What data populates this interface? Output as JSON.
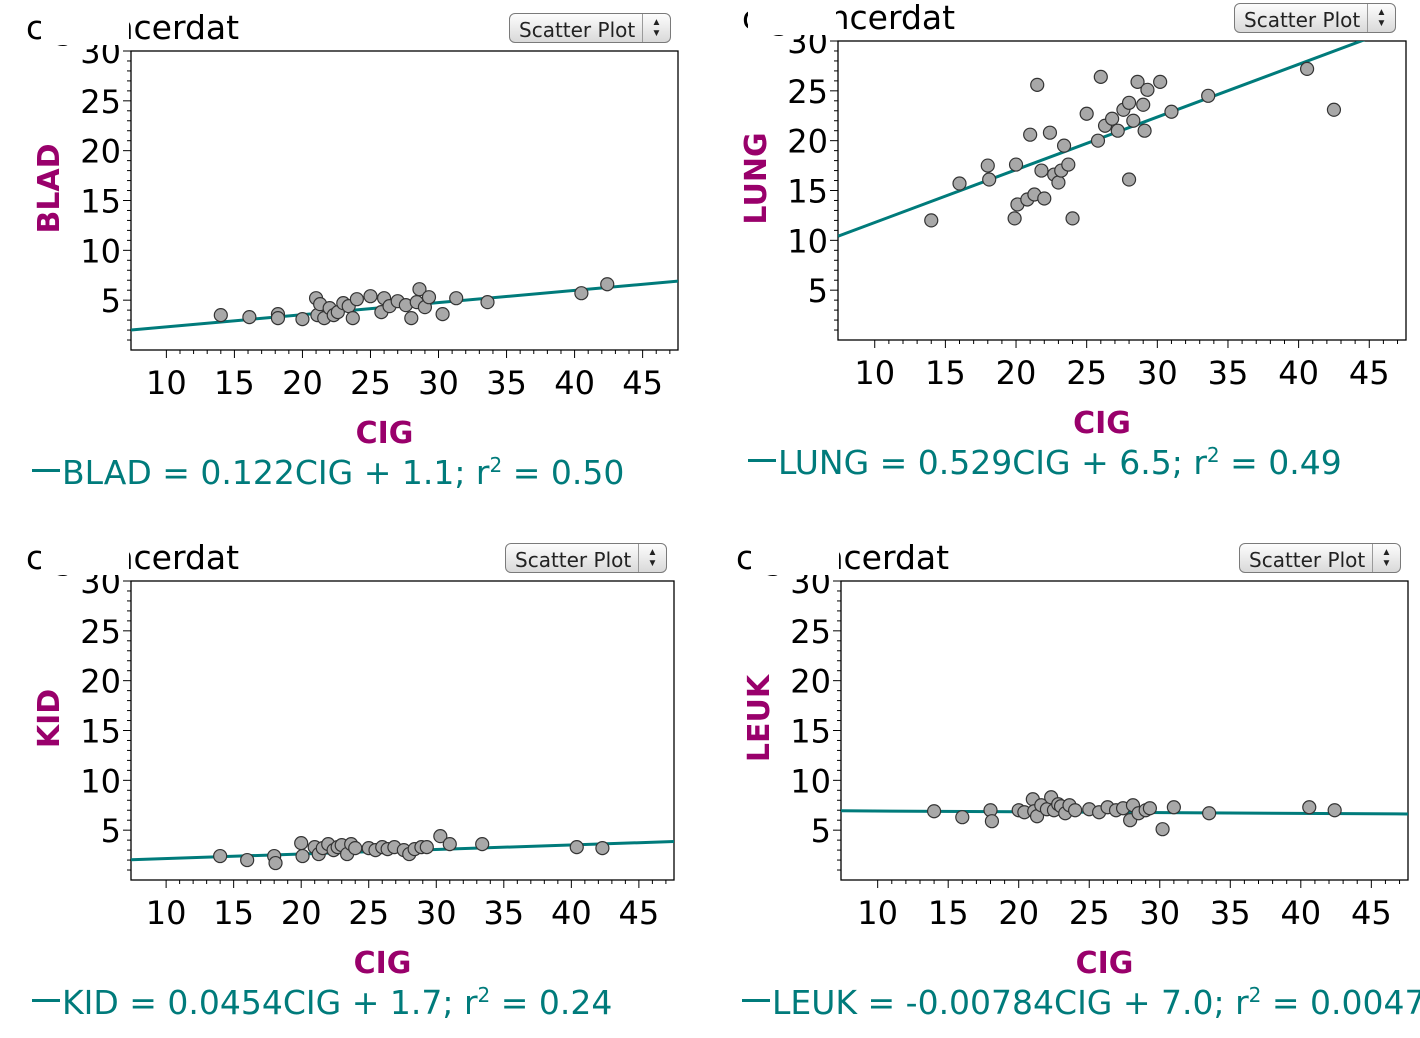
{
  "panels": [
    {
      "title": "cigcancerdat",
      "menu_label": "Scatter Plot",
      "equation": {
        "lhs": "BLAD = 0.122CIG + 1.1; r",
        "exp": "2",
        "rhs": " = 0.50"
      }
    },
    {
      "title": "cigcancerdat",
      "menu_label": "Scatter Plot",
      "equation": {
        "lhs": "LUNG = 0.529CIG + 6.5; r",
        "exp": "2",
        "rhs": " = 0.49"
      }
    },
    {
      "title": "cigcancerdat",
      "menu_label": "Scatter Plot",
      "equation": {
        "lhs": "KID = 0.0454CIG + 1.7; r",
        "exp": "2",
        "rhs": " = 0.24"
      }
    },
    {
      "title": "cigcancerdat",
      "menu_label": "Scatter Plot",
      "equation": {
        "lhs": "LEUK = -0.00784CIG + 7.0; r",
        "exp": "2",
        "rhs": " = 0.0047"
      }
    }
  ],
  "colors": {
    "line": "#007b7b",
    "label": "#99006b",
    "point_fill": "#a8a8a8",
    "point_stroke": "#333333"
  },
  "chart_data": [
    {
      "type": "scatter",
      "title": "cigcancerdat",
      "xlabel": "CIG",
      "ylabel": "BLAD",
      "xlim": [
        7.4,
        47.6
      ],
      "ylim": [
        0,
        30
      ],
      "x_ticks": [
        10,
        15,
        20,
        25,
        30,
        35,
        40,
        45
      ],
      "y_ticks": [
        5,
        10,
        15,
        20,
        25,
        30
      ],
      "y_tick_labels": [
        "5",
        "10",
        "15",
        "20",
        "25",
        "30"
      ],
      "regression": {
        "slope": 0.122,
        "intercept": 1.1
      },
      "x": [
        14.0,
        16.1,
        18.2,
        18.2,
        20.0,
        21.0,
        21.1,
        21.3,
        21.6,
        22.0,
        22.3,
        22.6,
        23.0,
        23.4,
        23.7,
        24.0,
        25.0,
        25.8,
        26.0,
        26.4,
        27.0,
        27.6,
        28.0,
        28.4,
        28.6,
        29.0,
        29.3,
        30.3,
        31.3,
        33.6,
        40.5,
        42.4
      ],
      "y": [
        3.5,
        3.3,
        3.6,
        3.2,
        3.1,
        5.2,
        3.5,
        4.6,
        3.2,
        4.2,
        3.5,
        3.8,
        4.7,
        4.4,
        3.2,
        5.1,
        5.4,
        3.8,
        5.2,
        4.4,
        4.9,
        4.5,
        3.2,
        4.8,
        6.1,
        4.3,
        5.3,
        3.6,
        5.2,
        4.8,
        5.7,
        6.6
      ]
    },
    {
      "type": "scatter",
      "title": "cigcancerdat",
      "xlabel": "CIG",
      "ylabel": "LUNG",
      "xlim": [
        7.4,
        47.6
      ],
      "ylim": [
        0,
        30
      ],
      "x_ticks": [
        10,
        15,
        20,
        25,
        30,
        35,
        40,
        45
      ],
      "y_ticks": [
        5,
        10,
        15,
        20,
        25,
        30
      ],
      "y_tick_labels": [
        "5",
        "10",
        "15",
        "20",
        "25",
        "30"
      ],
      "regression": {
        "slope": 0.529,
        "intercept": 6.5
      },
      "x": [
        14.0,
        16.0,
        18.0,
        18.1,
        20.0,
        19.9,
        20.1,
        20.8,
        21.0,
        21.3,
        21.5,
        21.8,
        22.0,
        22.4,
        22.7,
        23.0,
        23.2,
        23.4,
        23.7,
        24.0,
        25.0,
        25.8,
        26.0,
        26.3,
        26.8,
        27.2,
        27.6,
        28.0,
        28.0,
        28.3,
        28.6,
        29.0,
        29.3,
        29.1,
        30.2,
        31.0,
        33.6,
        40.6,
        42.5
      ],
      "y": [
        12.0,
        15.7,
        17.5,
        16.1,
        17.6,
        12.2,
        13.6,
        14.1,
        20.6,
        14.6,
        25.6,
        17.0,
        14.2,
        20.8,
        16.6,
        15.8,
        17.0,
        19.5,
        17.6,
        12.2,
        22.7,
        20.0,
        26.4,
        21.5,
        22.2,
        21.0,
        23.1,
        16.1,
        23.8,
        22.0,
        25.9,
        23.6,
        25.1,
        21.0,
        25.9,
        22.9,
        24.5,
        27.2,
        23.1
      ]
    },
    {
      "type": "scatter",
      "title": "cigcancerdat",
      "xlabel": "CIG",
      "ylabel": "KID",
      "xlim": [
        7.4,
        47.6
      ],
      "ylim": [
        0,
        30
      ],
      "x_ticks": [
        10,
        15,
        20,
        25,
        30,
        35,
        40,
        45
      ],
      "y_ticks": [
        5,
        10,
        15,
        20,
        25,
        30
      ],
      "y_tick_labels": [
        "5",
        "10",
        "15",
        "20",
        "25",
        "30"
      ],
      "regression": {
        "slope": 0.0454,
        "intercept": 1.7
      },
      "x": [
        14.0,
        16.0,
        18.0,
        18.1,
        20.0,
        20.1,
        21.0,
        21.3,
        21.6,
        22.0,
        22.4,
        22.7,
        23.0,
        23.4,
        23.7,
        24.0,
        25.0,
        25.5,
        26.0,
        26.4,
        26.9,
        27.6,
        28.0,
        28.4,
        28.9,
        29.3,
        30.3,
        31.0,
        33.4,
        40.4,
        42.3
      ],
      "y": [
        2.4,
        2.0,
        2.4,
        1.7,
        3.7,
        2.4,
        3.3,
        2.6,
        3.2,
        3.6,
        3.0,
        3.3,
        3.5,
        2.6,
        3.6,
        3.2,
        3.2,
        3.0,
        3.3,
        3.1,
        3.3,
        3.0,
        2.6,
        3.1,
        3.3,
        3.3,
        4.4,
        3.6,
        3.6,
        3.3,
        3.2
      ]
    },
    {
      "type": "scatter",
      "title": "cigcancerdat",
      "xlabel": "CIG",
      "ylabel": "LEUK",
      "xlim": [
        7.4,
        47.6
      ],
      "ylim": [
        0,
        30
      ],
      "x_ticks": [
        10,
        15,
        20,
        25,
        30,
        35,
        40,
        45
      ],
      "y_ticks": [
        5,
        10,
        15,
        20,
        25,
        30
      ],
      "y_tick_labels": [
        "5",
        "10",
        "15",
        "20",
        "25",
        "30"
      ],
      "regression": {
        "slope": -0.00784,
        "intercept": 7.0
      },
      "x": [
        14.0,
        16.0,
        18.0,
        18.1,
        20.0,
        20.4,
        21.0,
        21.1,
        21.3,
        21.6,
        22.0,
        22.3,
        22.5,
        22.8,
        23.0,
        23.3,
        23.6,
        24.0,
        25.0,
        25.7,
        26.3,
        26.9,
        27.4,
        27.9,
        28.1,
        28.5,
        29.0,
        29.3,
        30.2,
        31.0,
        33.5,
        40.6,
        42.4
      ],
      "y": [
        6.9,
        6.3,
        7.0,
        5.9,
        7.0,
        6.8,
        8.1,
        6.9,
        6.4,
        7.5,
        7.1,
        8.3,
        7.0,
        7.6,
        7.4,
        6.7,
        7.5,
        7.0,
        7.1,
        6.8,
        7.3,
        7.0,
        7.2,
        6.0,
        7.5,
        6.7,
        7.0,
        7.2,
        5.1,
        7.3,
        6.7,
        7.3,
        7.0
      ]
    }
  ]
}
